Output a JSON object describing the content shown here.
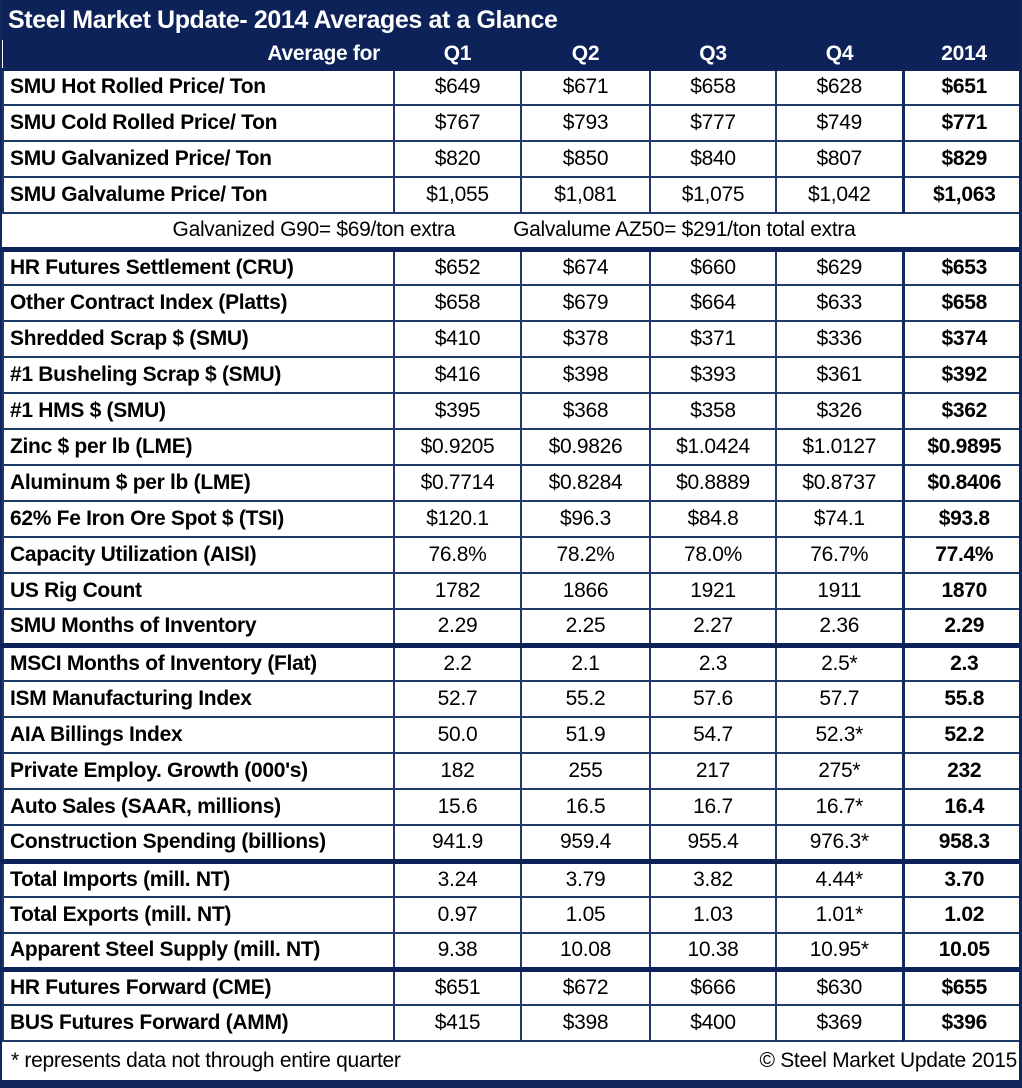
{
  "colors": {
    "navy_header": "#0d2259",
    "grid_line": "#1f3a68",
    "text": "#000000",
    "header_text": "#ffffff"
  },
  "title": "Steel Market Update- 2014 Averages at a Glance",
  "header": {
    "row_label": "Average for",
    "columns": [
      "Q1",
      "Q2",
      "Q3",
      "Q4",
      "2014"
    ]
  },
  "rows": [
    {
      "label": "SMU Hot Rolled Price/ Ton",
      "values": [
        "$649",
        "$671",
        "$658",
        "$628",
        "$651"
      ]
    },
    {
      "label": "SMU Cold Rolled Price/ Ton",
      "values": [
        "$767",
        "$793",
        "$777",
        "$749",
        "$771"
      ]
    },
    {
      "label": "SMU Galvanized Price/ Ton",
      "values": [
        "$820",
        "$850",
        "$840",
        "$807",
        "$829"
      ]
    },
    {
      "label": "SMU Galvalume Price/ Ton",
      "values": [
        "$1,055",
        "$1,081",
        "$1,075",
        "$1,042",
        "$1,063"
      ]
    },
    {
      "type": "note",
      "left": "Galvanized G90= $69/ton extra",
      "right": "Galvalume AZ50= $291/ton total extra"
    },
    {
      "label": "HR Futures Settlement (CRU)",
      "values": [
        "$652",
        "$674",
        "$660",
        "$629",
        "$653"
      ],
      "thick_top": true
    },
    {
      "label": "Other Contract Index (Platts)",
      "values": [
        "$658",
        "$679",
        "$664",
        "$633",
        "$658"
      ]
    },
    {
      "label": "Shredded Scrap $ (SMU)",
      "values": [
        "$410",
        "$378",
        "$371",
        "$336",
        "$374"
      ]
    },
    {
      "label": "#1 Busheling Scrap $ (SMU)",
      "values": [
        "$416",
        "$398",
        "$393",
        "$361",
        "$392"
      ]
    },
    {
      "label": "#1 HMS $ (SMU)",
      "values": [
        "$395",
        "$368",
        "$358",
        "$326",
        "$362"
      ]
    },
    {
      "label": "Zinc $ per lb (LME)",
      "values": [
        "$0.9205",
        "$0.9826",
        "$1.0424",
        "$1.0127",
        "$0.9895"
      ]
    },
    {
      "label": "Aluminum $ per lb (LME)",
      "values": [
        "$0.7714",
        "$0.8284",
        "$0.8889",
        "$0.8737",
        "$0.8406"
      ]
    },
    {
      "label": "62% Fe Iron Ore Spot $ (TSI)",
      "values": [
        "$120.1",
        "$96.3",
        "$84.8",
        "$74.1",
        "$93.8"
      ]
    },
    {
      "label": "Capacity Utilization (AISI)",
      "values": [
        "76.8%",
        "78.2%",
        "78.0%",
        "76.7%",
        "77.4%"
      ]
    },
    {
      "label": "US Rig Count",
      "values": [
        "1782",
        "1866",
        "1921",
        "1911",
        "1870"
      ]
    },
    {
      "label": "SMU Months of Inventory",
      "values": [
        "2.29",
        "2.25",
        "2.27",
        "2.36",
        "2.29"
      ]
    },
    {
      "label": "MSCI Months of Inventory (Flat)",
      "values": [
        "2.2",
        "2.1",
        "2.3",
        "2.5*",
        "2.3"
      ],
      "thick_top": true
    },
    {
      "label": "ISM Manufacturing Index",
      "values": [
        "52.7",
        "55.2",
        "57.6",
        "57.7",
        "55.8"
      ]
    },
    {
      "label": "AIA Billings Index",
      "values": [
        "50.0",
        "51.9",
        "54.7",
        "52.3*",
        "52.2"
      ]
    },
    {
      "label": "Private Employ. Growth (000's)",
      "values": [
        "182",
        "255",
        "217",
        "275*",
        "232"
      ]
    },
    {
      "label": "Auto Sales (SAAR, millions)",
      "values": [
        "15.6",
        "16.5",
        "16.7",
        "16.7*",
        "16.4"
      ]
    },
    {
      "label": "Construction Spending (billions)",
      "values": [
        "941.9",
        "959.4",
        "955.4",
        "976.3*",
        "958.3"
      ]
    },
    {
      "label": "Total Imports (mill. NT)",
      "values": [
        "3.24",
        "3.79",
        "3.82",
        "4.44*",
        "3.70"
      ],
      "thick_top": true
    },
    {
      "label": "Total Exports (mill. NT)",
      "values": [
        "0.97",
        "1.05",
        "1.03",
        "1.01*",
        "1.02"
      ]
    },
    {
      "label": "Apparent Steel Supply (mill. NT)",
      "values": [
        "9.38",
        "10.08",
        "10.38",
        "10.95*",
        "10.05"
      ]
    },
    {
      "label": "HR Futures Forward (CME)",
      "values": [
        "$651",
        "$672",
        "$666",
        "$630",
        "$655"
      ],
      "thick_top": true
    },
    {
      "label": "BUS Futures Forward (AMM)",
      "values": [
        "$415",
        "$398",
        "$400",
        "$369",
        "$396"
      ]
    }
  ],
  "footer": {
    "left": "* represents data not through entire quarter",
    "right": "© Steel Market Update 2015"
  }
}
